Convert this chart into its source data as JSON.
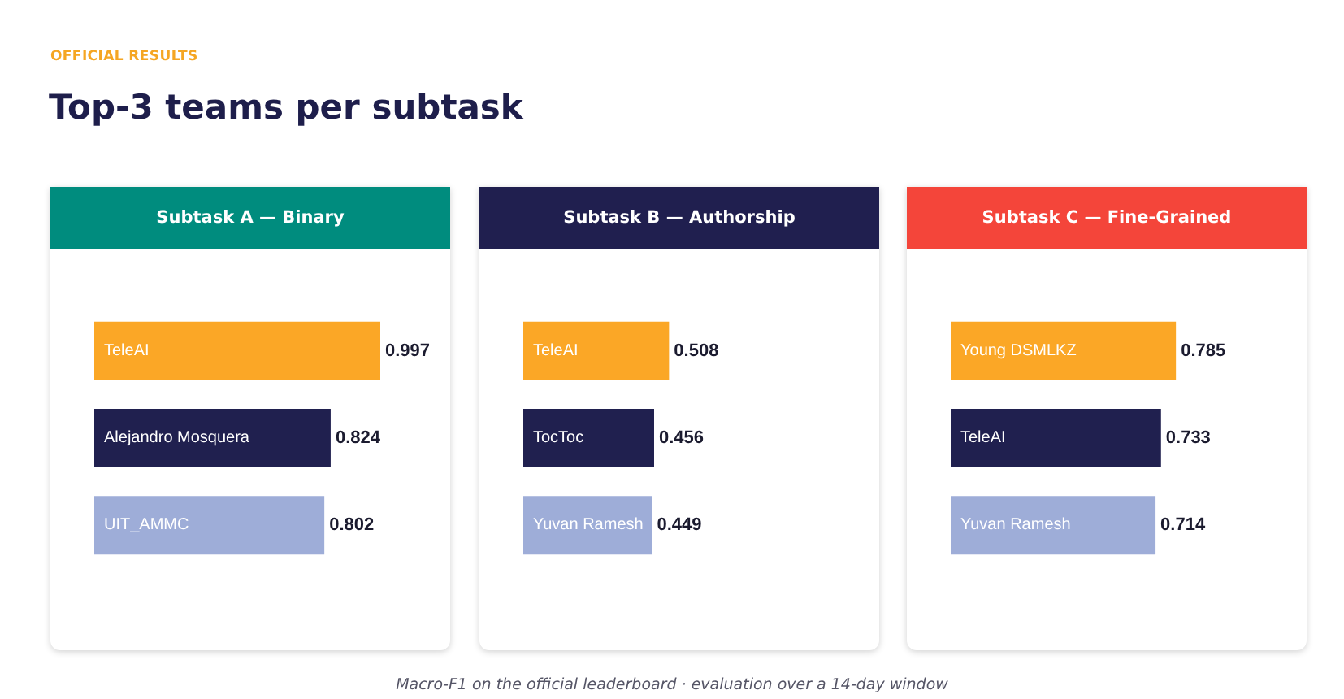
{
  "chart_data": [
    {
      "type": "other",
      "subtitle": "OFFICIAL RESULTS",
      "title": "Top-3 teams per subtask",
      "annotations": [
        "Macro-F1 on the official leaderboard · evaluation over a 14-day window"
      ]
    },
    {
      "type": "bar",
      "title": "Subtask A — Binary",
      "orientation": "horizontal",
      "categories": [
        "TeleAI",
        "Alejandro Mosquera",
        "UIT_AMMC"
      ],
      "values": [
        0.997,
        0.824,
        0.802
      ],
      "colors": [
        "#fba726",
        "#20204f",
        "#9eadd8"
      ],
      "data_labels": true,
      "tick_labels": "y"
    },
    {
      "type": "bar",
      "title": "Subtask B — Authorship",
      "orientation": "horizontal",
      "categories": [
        "TeleAI",
        "TocToc",
        "Yuvan Ramesh"
      ],
      "values": [
        0.508,
        0.456,
        0.449
      ],
      "colors": [
        "#fba726",
        "#20204f",
        "#9eadd8"
      ],
      "data_labels": true,
      "tick_labels": "y"
    },
    {
      "type": "bar",
      "title": "Subtask C — Fine-Grained",
      "orientation": "horizontal",
      "categories": [
        "Young DSMLKZ",
        "TeleAI",
        "Yuvan Ramesh"
      ],
      "values": [
        0.785,
        0.733,
        0.714
      ],
      "colors": [
        "#fba726",
        "#20204f",
        "#9eadd8"
      ],
      "data_labels": true,
      "tick_labels": "y"
    }
  ]
}
